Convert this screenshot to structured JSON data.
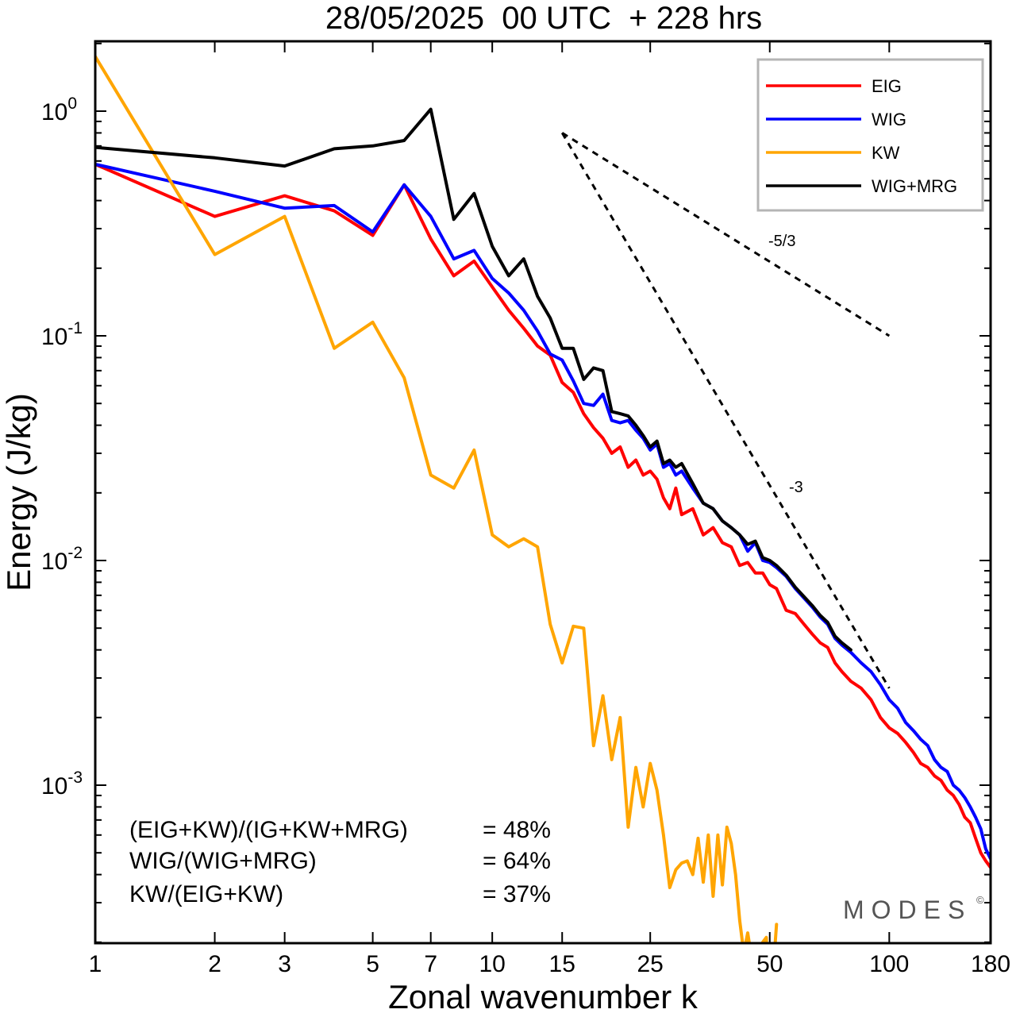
{
  "chart_data": {
    "type": "line",
    "title": "28/05/2025  00 UTC  + 228 hrs",
    "xlabel": "Zonal wavenumber k",
    "ylabel": "Energy (J/kg)",
    "x_scale": "log",
    "y_scale": "log",
    "xlim": [
      1,
      180
    ],
    "ylim": [
      0.0002,
      2.0
    ],
    "x_ticks": [
      1,
      2,
      3,
      5,
      7,
      10,
      15,
      25,
      50,
      100,
      180
    ],
    "y_ticks": [
      {
        "value": 1,
        "base": "10",
        "exp": "0"
      },
      {
        "value": 0.1,
        "base": "10",
        "exp": "-1"
      },
      {
        "value": 0.01,
        "base": "10",
        "exp": "-2"
      },
      {
        "value": 0.001,
        "base": "10",
        "exp": "-3"
      }
    ],
    "legend_position": "top-right",
    "series": [
      {
        "name": "EIG",
        "color": "#ff0000",
        "x": [
          1,
          2,
          3,
          4,
          5,
          6,
          7,
          8,
          9,
          10,
          11,
          12,
          13,
          14,
          15,
          16,
          17,
          18,
          19,
          20,
          21,
          22,
          23,
          24,
          25,
          26,
          27,
          28,
          29,
          30,
          32,
          34,
          36,
          38,
          40,
          42,
          44,
          46,
          48,
          50,
          52,
          55,
          58,
          61,
          64,
          67,
          70,
          73,
          76,
          80,
          85,
          90,
          95,
          100,
          105,
          110,
          115,
          120,
          125,
          130,
          135,
          140,
          145,
          150,
          155,
          160,
          165,
          170,
          175,
          180
        ],
        "y": [
          0.58,
          0.34,
          0.42,
          0.36,
          0.28,
          0.47,
          0.27,
          0.185,
          0.215,
          0.165,
          0.13,
          0.108,
          0.09,
          0.082,
          0.062,
          0.056,
          0.045,
          0.039,
          0.035,
          0.03,
          0.032,
          0.026,
          0.028,
          0.024,
          0.025,
          0.023,
          0.019,
          0.017,
          0.021,
          0.016,
          0.017,
          0.013,
          0.014,
          0.012,
          0.0115,
          0.0095,
          0.0098,
          0.0088,
          0.0088,
          0.0078,
          0.0075,
          0.006,
          0.0058,
          0.0052,
          0.0047,
          0.0043,
          0.0041,
          0.0035,
          0.0032,
          0.0029,
          0.0027,
          0.0024,
          0.002,
          0.0018,
          0.0017,
          0.00155,
          0.0014,
          0.00125,
          0.0012,
          0.0011,
          0.00105,
          0.00095,
          0.0009,
          0.00082,
          0.00072,
          0.00068,
          0.00058,
          0.0005,
          0.00046,
          0.00043
        ]
      },
      {
        "name": "WIG",
        "color": "#0000ff",
        "x": [
          1,
          2,
          3,
          4,
          5,
          6,
          7,
          8,
          9,
          10,
          11,
          12,
          13,
          14,
          15,
          16,
          17,
          18,
          19,
          20,
          21,
          22,
          23,
          24,
          25,
          26,
          27,
          28,
          29,
          30,
          32,
          34,
          36,
          38,
          40,
          42,
          44,
          46,
          48,
          50,
          52,
          55,
          58,
          61,
          64,
          67,
          70,
          73,
          76,
          80,
          85,
          90,
          95,
          100,
          105,
          110,
          115,
          120,
          125,
          130,
          135,
          140,
          145,
          150,
          155,
          160,
          165,
          170,
          175,
          180
        ],
        "y": [
          0.58,
          0.44,
          0.37,
          0.38,
          0.29,
          0.47,
          0.34,
          0.22,
          0.24,
          0.18,
          0.155,
          0.13,
          0.105,
          0.083,
          0.078,
          0.063,
          0.05,
          0.049,
          0.055,
          0.042,
          0.041,
          0.042,
          0.038,
          0.035,
          0.031,
          0.033,
          0.026,
          0.027,
          0.024,
          0.025,
          0.021,
          0.018,
          0.017,
          0.015,
          0.014,
          0.013,
          0.011,
          0.012,
          0.01,
          0.0098,
          0.0093,
          0.0085,
          0.0075,
          0.0068,
          0.0062,
          0.0056,
          0.0052,
          0.0045,
          0.0042,
          0.0039,
          0.0035,
          0.0032,
          0.0028,
          0.0024,
          0.0022,
          0.0019,
          0.00175,
          0.0016,
          0.0015,
          0.0013,
          0.0012,
          0.00115,
          0.001,
          0.00095,
          0.00088,
          0.0008,
          0.00072,
          0.00064,
          0.00052,
          0.00047
        ]
      },
      {
        "name": "KW",
        "color": "#ffa500",
        "x": [
          1,
          2,
          3,
          4,
          5,
          6,
          7,
          8,
          9,
          10,
          11,
          12,
          13,
          14,
          15,
          16,
          17,
          18,
          19,
          20,
          21,
          22,
          23,
          24,
          25,
          26,
          27,
          28,
          29,
          30,
          31,
          32,
          33,
          34,
          35,
          36,
          37,
          38,
          39,
          40,
          41,
          42,
          43,
          44,
          45,
          46,
          47,
          48,
          49,
          50,
          51,
          52
        ],
        "y": [
          1.75,
          0.23,
          0.34,
          0.088,
          0.115,
          0.065,
          0.024,
          0.021,
          0.031,
          0.013,
          0.0115,
          0.0125,
          0.0115,
          0.0052,
          0.0035,
          0.0051,
          0.005,
          0.0015,
          0.0025,
          0.0013,
          0.002,
          0.00065,
          0.0012,
          0.0008,
          0.00125,
          0.00095,
          0.0006,
          0.00035,
          0.00042,
          0.00045,
          0.00046,
          0.0004,
          0.00058,
          0.00037,
          0.0006,
          0.00032,
          0.0006,
          0.00036,
          0.00065,
          0.00055,
          0.0004,
          0.00025,
          0.00018,
          0.00022,
          0.00017,
          0.00012,
          0.00016,
          0.0002,
          0.00021,
          0.0001,
          0.00015,
          0.00024
        ]
      },
      {
        "name": "WIG+MRG",
        "color": "#000000",
        "x": [
          1,
          2,
          3,
          4,
          5,
          6,
          7,
          8,
          9,
          10,
          11,
          12,
          13,
          14,
          15,
          16,
          17,
          18,
          19,
          20,
          21,
          22,
          23,
          24,
          25,
          26,
          27,
          28,
          29,
          30,
          32,
          34,
          36,
          38,
          40,
          42,
          44,
          46,
          48,
          50,
          52,
          55,
          58,
          61,
          64,
          67,
          70,
          73,
          76,
          80
        ],
        "y": [
          0.69,
          0.62,
          0.57,
          0.68,
          0.7,
          0.74,
          1.02,
          0.33,
          0.43,
          0.25,
          0.185,
          0.22,
          0.15,
          0.12,
          0.088,
          0.088,
          0.064,
          0.072,
          0.07,
          0.046,
          0.045,
          0.044,
          0.04,
          0.036,
          0.032,
          0.034,
          0.027,
          0.028,
          0.026,
          0.027,
          0.022,
          0.018,
          0.017,
          0.015,
          0.014,
          0.013,
          0.0118,
          0.0122,
          0.0103,
          0.01,
          0.0095,
          0.0086,
          0.0076,
          0.0069,
          0.0063,
          0.0057,
          0.0053,
          0.0046,
          0.0043,
          0.004
        ]
      }
    ],
    "reference_lines": [
      {
        "label": "-5/3",
        "x": [
          15,
          100
        ],
        "y": [
          0.8,
          0.1
        ]
      },
      {
        "label": "-3",
        "x": [
          15,
          100
        ],
        "y": [
          0.8,
          0.0027
        ]
      }
    ],
    "annotations": [
      {
        "label": "(EIG+KW)/(IG+KW+MRG)",
        "value": "= 48%"
      },
      {
        "label": "WIG/(WIG+MRG)",
        "value": "= 64%"
      },
      {
        "label": "KW/(EIG+KW)",
        "value": "= 37%"
      }
    ],
    "brand": "MODES",
    "brand_mark": "©"
  }
}
